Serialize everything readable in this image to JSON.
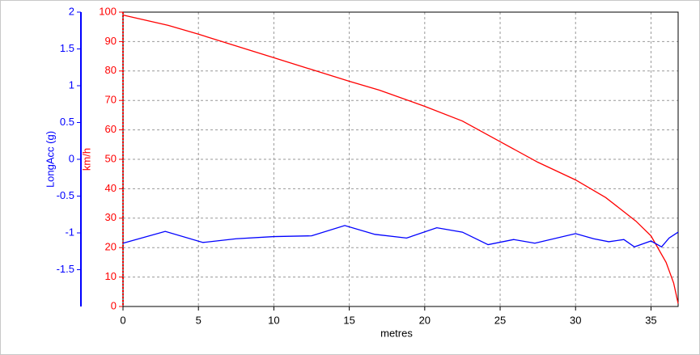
{
  "chart_data": {
    "type": "line",
    "xlabel": "metres",
    "ylabel": "km/h",
    "y2label": "LongAcc (g)",
    "xlim": [
      0,
      36.8
    ],
    "xticks": [
      0,
      5,
      10,
      15,
      20,
      25,
      30,
      35
    ],
    "ylim": [
      0,
      100
    ],
    "yticks": [
      0,
      10,
      20,
      30,
      40,
      50,
      60,
      70,
      80,
      90,
      100
    ],
    "y2lim": [
      -2,
      2
    ],
    "y2ticks": [
      -1.5,
      -1,
      -0.5,
      0,
      0.5,
      1,
      1.5,
      2
    ],
    "grid": true,
    "series": [
      {
        "color": "#ff0000",
        "x": [
          0,
          3,
          5,
          10,
          15,
          17,
          20,
          22.5,
          25,
          27.5,
          30,
          32,
          34,
          35,
          36,
          36.5,
          36.8
        ],
        "values": [
          99,
          95.5,
          92.5,
          84.5,
          76.5,
          73.5,
          68,
          63,
          56,
          49,
          43,
          37,
          29,
          24,
          15,
          8,
          1
        ]
      },
      {
        "color": "#0000ff",
        "axis": "y2",
        "x": [
          0,
          2.8,
          5.3,
          7.5,
          10,
          12.5,
          14.7,
          16.7,
          18.8,
          20.8,
          22.5,
          24.2,
          25.9,
          27.3,
          30,
          31.2,
          32.2,
          33.2,
          33.9,
          35,
          35.7,
          36.2,
          36.8
        ],
        "values": [
          -1.14,
          -0.98,
          -1.13,
          -1.08,
          -1.05,
          -1.04,
          -0.9,
          -1.02,
          -1.07,
          -0.93,
          -0.99,
          -1.16,
          -1.09,
          -1.14,
          -1.01,
          -1.08,
          -1.12,
          -1.09,
          -1.19,
          -1.11,
          -1.19,
          -1.07,
          -0.99
        ]
      }
    ]
  }
}
